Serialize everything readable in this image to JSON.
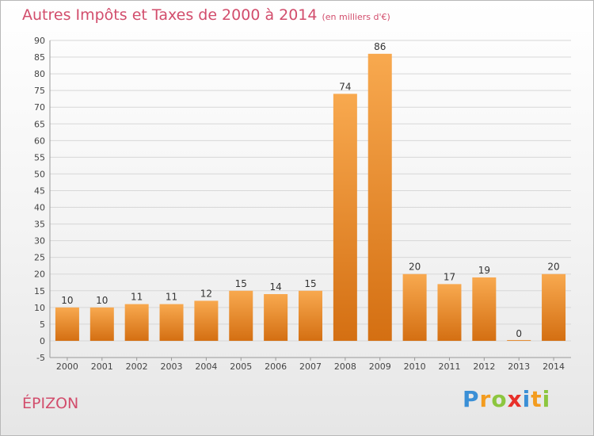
{
  "title": {
    "main": "Autres Impôts et Taxes de 2000 à 2014",
    "unit": "(en milliers d'€)"
  },
  "commune": "ÉPIZON",
  "logo": {
    "text": "Proxiti",
    "letters": [
      {
        "char": "P",
        "color": "#3a8fd6"
      },
      {
        "char": "r",
        "color": "#f39c1f"
      },
      {
        "char": "o",
        "color": "#8cc63f"
      },
      {
        "char": "x",
        "color": "#e8302a"
      },
      {
        "char": "i",
        "color": "#3a8fd6"
      },
      {
        "char": "t",
        "color": "#f39c1f"
      },
      {
        "char": "i",
        "color": "#8cc63f"
      }
    ]
  },
  "colors": {
    "bar_light": "#f8a94f",
    "bar_dark": "#d46f12",
    "grid": "#d7d7d7",
    "title": "#d24d6c"
  },
  "chart_data": {
    "type": "bar",
    "title": "Autres Impôts et Taxes de 2000 à 2014",
    "subtitle": "(en milliers d'€)",
    "categories": [
      "2000",
      "2001",
      "2002",
      "2003",
      "2004",
      "2005",
      "2006",
      "2007",
      "2008",
      "2009",
      "2010",
      "2011",
      "2012",
      "2013",
      "2014"
    ],
    "values": [
      10,
      10,
      11,
      11,
      12,
      15,
      14,
      15,
      74,
      86,
      20,
      17,
      19,
      0,
      20
    ],
    "ylim": [
      -5,
      90
    ],
    "yticks": [
      -5,
      0,
      5,
      10,
      15,
      20,
      25,
      30,
      35,
      40,
      45,
      50,
      55,
      60,
      65,
      70,
      75,
      80,
      85,
      90
    ],
    "grid": true,
    "xlabel": "",
    "ylabel": ""
  }
}
